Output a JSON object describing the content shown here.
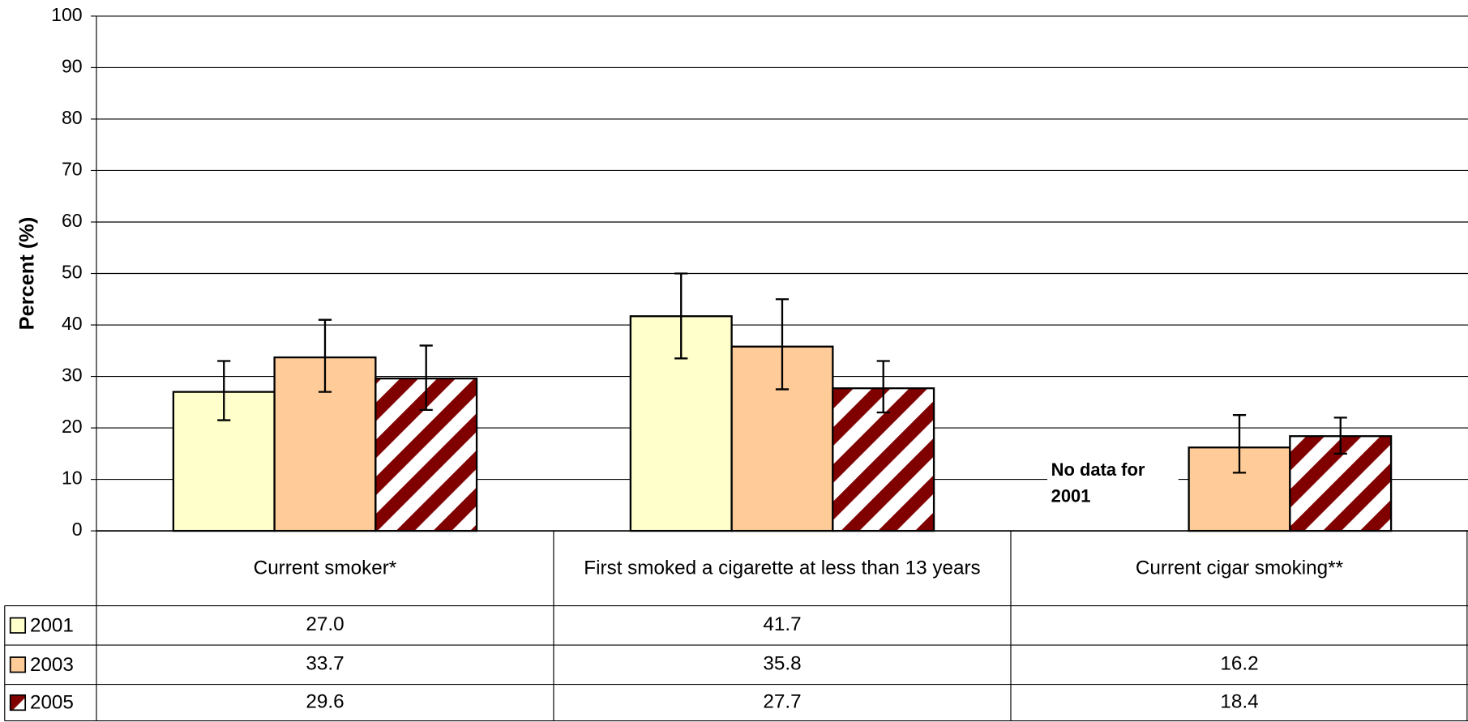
{
  "chart_data": {
    "type": "bar",
    "y_label": "Percent (%)",
    "categories": [
      "Current smoker*",
      "First smoked a cigarette at less than 13 years",
      "Current cigar smoking**"
    ],
    "series": [
      {
        "name": "2001",
        "color": "#ffffcc",
        "values": [
          27.0,
          41.7,
          null
        ],
        "value_labels": [
          "27.0",
          "41.7",
          null
        ],
        "ci_low": [
          21.5,
          33.5,
          null
        ],
        "ci_high": [
          33.0,
          50.0,
          null
        ]
      },
      {
        "name": "2003",
        "color": "#ffcc99",
        "values": [
          33.7,
          35.8,
          16.2
        ],
        "value_labels": [
          "33.7",
          "35.8",
          "16.2"
        ],
        "ci_low": [
          27.0,
          27.5,
          11.3
        ],
        "ci_high": [
          41.0,
          45.0,
          22.5
        ]
      },
      {
        "name": "2005",
        "color": "#800000",
        "pattern": true,
        "values": [
          29.6,
          27.7,
          18.4
        ],
        "value_labels": [
          "29.6",
          "27.7",
          "18.4"
        ],
        "ci_low": [
          23.5,
          23.0,
          15.0
        ],
        "ci_high": [
          36.0,
          33.0,
          22.0
        ]
      }
    ],
    "annotations": [
      {
        "category": 2,
        "lines": [
          "No data for",
          "2001"
        ]
      }
    ],
    "ylim": [
      0,
      100
    ],
    "yticks": [
      0,
      10,
      20,
      30,
      40,
      50,
      60,
      70,
      80,
      90,
      100
    ],
    "grid": true
  }
}
